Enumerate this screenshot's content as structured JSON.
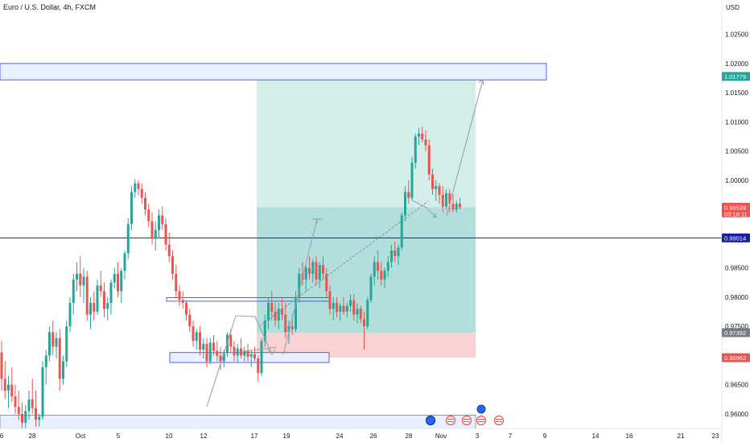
{
  "header": {
    "symbol_title": "Euro / U.S. Dollar, 4h, FXCM"
  },
  "colors": {
    "up": "#26a69a",
    "down": "#ef5350",
    "zone_fill": "#e8efff",
    "zone_stroke": "#2a3ee6",
    "target_fill": "#b2dfdb",
    "target_fill_light": "#d3ede9",
    "stop_fill": "#f9d2d5",
    "hline": "#1c1fa0"
  },
  "chart_data": {
    "type": "candlestick",
    "title": "Euro / U.S. Dollar, 4h, FXCM",
    "currency_label": "USD",
    "y_ticks": [
      "1.02500",
      "1.02000",
      "1.01500",
      "1.01000",
      "1.00500",
      "1.00000",
      "0.98500",
      "0.98000",
      "0.97500",
      "0.97000",
      "0.96500",
      "0.96000"
    ],
    "x_ticks": [
      "6",
      "28",
      "Oct",
      "5",
      "10",
      "12",
      "17",
      "19",
      "24",
      "26",
      "28",
      "Nov",
      "3",
      "7",
      "9",
      "14",
      "16",
      "21",
      "23"
    ],
    "ylim": [
      0.9575,
      1.0295
    ],
    "price_badges": [
      {
        "value": "1.01779",
        "color": "#26a69a"
      },
      {
        "value": "0.99539",
        "sub": "03:18:11",
        "color": "#ef5350"
      },
      {
        "value": "0.99014",
        "color": "#1c1fa0"
      },
      {
        "value": "0.97392",
        "color": "#787b86"
      },
      {
        "value": "0.96962",
        "color": "#ef5350"
      }
    ],
    "horizontal_line": 0.99014,
    "resistance_zone": [
      1.0172,
      1.02
    ],
    "demand_zone": [
      0.9575,
      0.9598
    ],
    "small_boxes": [
      [
        0.9793,
        0.9799
      ],
      [
        0.9688,
        0.9705
      ]
    ],
    "position": {
      "entry": 0.99539,
      "target": 1.01779,
      "stop": 0.96962,
      "entry_mark": 0.97392
    },
    "candles": [
      [
        0.9705,
        0.9725,
        0.964,
        0.966
      ],
      [
        0.966,
        0.969,
        0.9625,
        0.964
      ],
      [
        0.964,
        0.9665,
        0.961,
        0.965
      ],
      [
        0.965,
        0.968,
        0.962,
        0.963
      ],
      [
        0.963,
        0.965,
        0.96,
        0.9612
      ],
      [
        0.9612,
        0.964,
        0.959,
        0.96
      ],
      [
        0.96,
        0.962,
        0.9575,
        0.9585
      ],
      [
        0.9585,
        0.9615,
        0.9575,
        0.9605
      ],
      [
        0.9605,
        0.964,
        0.959,
        0.9625
      ],
      [
        0.9625,
        0.966,
        0.96,
        0.961
      ],
      [
        0.961,
        0.964,
        0.9578,
        0.959
      ],
      [
        0.959,
        0.96,
        0.9578,
        0.9595
      ],
      [
        0.9595,
        0.969,
        0.959,
        0.968
      ],
      [
        0.968,
        0.971,
        0.965,
        0.97
      ],
      [
        0.97,
        0.975,
        0.969,
        0.974
      ],
      [
        0.974,
        0.976,
        0.97,
        0.9715
      ],
      [
        0.9715,
        0.974,
        0.9695,
        0.973
      ],
      [
        0.973,
        0.9745,
        0.964,
        0.966
      ],
      [
        0.966,
        0.97,
        0.965,
        0.969
      ],
      [
        0.969,
        0.976,
        0.968,
        0.975
      ],
      [
        0.975,
        0.98,
        0.974,
        0.979
      ],
      [
        0.979,
        0.984,
        0.977,
        0.983
      ],
      [
        0.983,
        0.986,
        0.981,
        0.984
      ],
      [
        0.984,
        0.987,
        0.98,
        0.982
      ],
      [
        0.982,
        0.985,
        0.979,
        0.9835
      ],
      [
        0.9835,
        0.9845,
        0.976,
        0.977
      ],
      [
        0.977,
        0.98,
        0.9745,
        0.979
      ],
      [
        0.979,
        0.981,
        0.976,
        0.9775
      ],
      [
        0.9775,
        0.983,
        0.977,
        0.982
      ],
      [
        0.982,
        0.9845,
        0.98,
        0.981
      ],
      [
        0.981,
        0.9825,
        0.9765,
        0.978
      ],
      [
        0.978,
        0.98,
        0.976,
        0.979
      ],
      [
        0.979,
        0.983,
        0.977,
        0.9825
      ],
      [
        0.9825,
        0.985,
        0.9815,
        0.984
      ],
      [
        0.984,
        0.986,
        0.98,
        0.981
      ],
      [
        0.981,
        0.985,
        0.979,
        0.9845
      ],
      [
        0.9845,
        0.988,
        0.983,
        0.9875
      ],
      [
        0.9875,
        0.9935,
        0.9865,
        0.9925
      ],
      [
        0.9925,
        0.999,
        0.9915,
        0.998
      ],
      [
        0.998,
        1.0002,
        0.997,
        0.9995
      ],
      [
        0.9995,
        1.0,
        0.9975,
        0.9985
      ],
      [
        0.9985,
        0.9995,
        0.996,
        0.997
      ],
      [
        0.997,
        0.998,
        0.994,
        0.995
      ],
      [
        0.995,
        0.996,
        0.992,
        0.993
      ],
      [
        0.993,
        0.9945,
        0.989,
        0.99
      ],
      [
        0.99,
        0.993,
        0.988,
        0.9915
      ],
      [
        0.9915,
        0.995,
        0.99,
        0.994
      ],
      [
        0.994,
        0.9955,
        0.9915,
        0.9925
      ],
      [
        0.9925,
        0.9935,
        0.988,
        0.989
      ],
      [
        0.989,
        0.991,
        0.986,
        0.987
      ],
      [
        0.987,
        0.988,
        0.983,
        0.984
      ],
      [
        0.984,
        0.9855,
        0.98,
        0.981
      ],
      [
        0.981,
        0.982,
        0.9785,
        0.9795
      ],
      [
        0.9795,
        0.981,
        0.978,
        0.979
      ],
      [
        0.979,
        0.9795,
        0.976,
        0.977
      ],
      [
        0.977,
        0.978,
        0.974,
        0.975
      ],
      [
        0.975,
        0.976,
        0.9715,
        0.9725
      ],
      [
        0.9725,
        0.9745,
        0.971,
        0.974
      ],
      [
        0.974,
        0.975,
        0.97,
        0.971
      ],
      [
        0.971,
        0.973,
        0.9695,
        0.972
      ],
      [
        0.972,
        0.973,
        0.968,
        0.969
      ],
      [
        0.969,
        0.973,
        0.9685,
        0.9722
      ],
      [
        0.9722,
        0.9735,
        0.97,
        0.9708
      ],
      [
        0.9708,
        0.9725,
        0.969,
        0.97
      ],
      [
        0.97,
        0.9715,
        0.9675,
        0.969
      ],
      [
        0.969,
        0.971,
        0.968,
        0.9705
      ],
      [
        0.9705,
        0.974,
        0.9698,
        0.9735
      ],
      [
        0.9735,
        0.9745,
        0.9705,
        0.9715
      ],
      [
        0.9715,
        0.9725,
        0.969,
        0.97
      ],
      [
        0.97,
        0.972,
        0.9688,
        0.9712
      ],
      [
        0.9712,
        0.973,
        0.9695,
        0.97
      ],
      [
        0.97,
        0.9715,
        0.969,
        0.9708
      ],
      [
        0.9708,
        0.972,
        0.969,
        0.9698
      ],
      [
        0.9698,
        0.971,
        0.968,
        0.9702
      ],
      [
        0.9702,
        0.9715,
        0.969,
        0.9695
      ],
      [
        0.9695,
        0.97,
        0.9655,
        0.967
      ],
      [
        0.967,
        0.973,
        0.9665,
        0.9725
      ],
      [
        0.9725,
        0.977,
        0.9715,
        0.976
      ],
      [
        0.976,
        0.98,
        0.9745,
        0.979
      ],
      [
        0.979,
        0.981,
        0.976,
        0.9775
      ],
      [
        0.9775,
        0.979,
        0.975,
        0.976
      ],
      [
        0.976,
        0.979,
        0.9745,
        0.978
      ],
      [
        0.978,
        0.98,
        0.976,
        0.977
      ],
      [
        0.977,
        0.979,
        0.973,
        0.974
      ],
      [
        0.974,
        0.976,
        0.972,
        0.975
      ],
      [
        0.975,
        0.977,
        0.9735,
        0.9745
      ],
      [
        0.9745,
        0.981,
        0.974,
        0.98
      ],
      [
        0.98,
        0.985,
        0.979,
        0.984
      ],
      [
        0.984,
        0.986,
        0.982,
        0.983
      ],
      [
        0.983,
        0.9855,
        0.981,
        0.985
      ],
      [
        0.985,
        0.987,
        0.983,
        0.984
      ],
      [
        0.984,
        0.9865,
        0.9825,
        0.986
      ],
      [
        0.986,
        0.987,
        0.982,
        0.983
      ],
      [
        0.983,
        0.986,
        0.9815,
        0.9855
      ],
      [
        0.9855,
        0.987,
        0.983,
        0.984
      ],
      [
        0.984,
        0.985,
        0.98,
        0.981
      ],
      [
        0.981,
        0.982,
        0.977,
        0.978
      ],
      [
        0.978,
        0.98,
        0.976,
        0.979
      ],
      [
        0.979,
        0.98,
        0.9765,
        0.9775
      ],
      [
        0.9775,
        0.979,
        0.976,
        0.9785
      ],
      [
        0.9785,
        0.98,
        0.977,
        0.9775
      ],
      [
        0.9775,
        0.979,
        0.9765,
        0.9785
      ],
      [
        0.9785,
        0.9805,
        0.9775,
        0.9795
      ],
      [
        0.9795,
        0.9805,
        0.976,
        0.977
      ],
      [
        0.977,
        0.979,
        0.9755,
        0.978
      ],
      [
        0.978,
        0.9785,
        0.9755,
        0.9762
      ],
      [
        0.9762,
        0.9775,
        0.971,
        0.975
      ],
      [
        0.975,
        0.98,
        0.9745,
        0.9795
      ],
      [
        0.9795,
        0.984,
        0.979,
        0.9835
      ],
      [
        0.9835,
        0.987,
        0.982,
        0.986
      ],
      [
        0.986,
        0.988,
        0.983,
        0.9845
      ],
      [
        0.9845,
        0.986,
        0.982,
        0.983
      ],
      [
        0.983,
        0.985,
        0.9815,
        0.9845
      ],
      [
        0.9845,
        0.987,
        0.9835,
        0.986
      ],
      [
        0.986,
        0.989,
        0.985,
        0.988
      ],
      [
        0.988,
        0.9895,
        0.986,
        0.987
      ],
      [
        0.987,
        0.989,
        0.9855,
        0.9885
      ],
      [
        0.9885,
        0.9945,
        0.988,
        0.994
      ],
      [
        0.994,
        0.999,
        0.993,
        0.998
      ],
      [
        0.998,
        1.0,
        0.996,
        0.997
      ],
      [
        0.997,
        1.004,
        0.9965,
        1.003
      ],
      [
        1.003,
        1.008,
        1.002,
        1.0075
      ],
      [
        1.0075,
        1.009,
        1.006,
        1.008
      ],
      [
        1.008,
        1.0092,
        1.0065,
        1.007
      ],
      [
        1.007,
        1.0085,
        1.005,
        1.006
      ],
      [
        1.006,
        1.007,
        1.0,
        1.001
      ],
      [
        1.001,
        1.002,
        0.9975,
        0.9985
      ],
      [
        0.9985,
        1.0,
        0.9965,
        0.999
      ],
      [
        0.999,
        0.9995,
        0.996,
        0.9975
      ],
      [
        0.9975,
        0.999,
        0.9945,
        0.9955
      ],
      [
        0.9955,
        0.9985,
        0.995,
        0.9978
      ],
      [
        0.9978,
        0.9985,
        0.9945,
        0.996
      ],
      [
        0.996,
        0.9975,
        0.9945,
        0.995
      ],
      [
        0.995,
        0.9965,
        0.9945,
        0.996
      ],
      [
        0.996,
        0.997,
        0.995,
        0.9954
      ]
    ]
  }
}
